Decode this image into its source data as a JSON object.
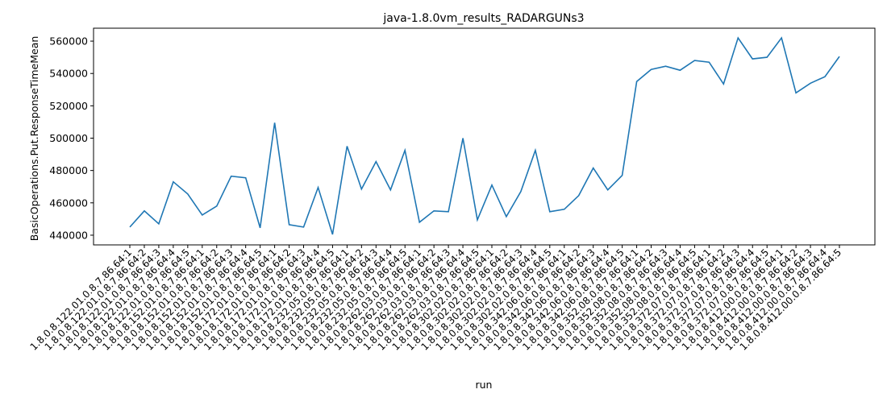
{
  "chart_data": {
    "type": "line",
    "title": "java-1.8.0vm_results_RADARGUNs3",
    "xlabel": "run",
    "ylabel": "BasicOperations.Put.ResponseTimeMean",
    "ylim": [
      434000,
      568000
    ],
    "yticks": [
      440000,
      460000,
      480000,
      500000,
      520000,
      540000,
      560000
    ],
    "grid": false,
    "line_color": "#1f77b4",
    "categories": [
      "1.8.0.8.122.01.0.8.7.86.64:1",
      "1.8.0.8.122.01.0.8.7.86.64:2",
      "1.8.0.8.122.01.0.8.7.86.64:3",
      "1.8.0.8.122.01.0.8.7.86.64:4",
      "1.8.0.8.122.01.0.8.7.86.64:5",
      "1.8.0.8.152.01.0.8.7.86.64:1",
      "1.8.0.8.152.01.0.8.7.86.64:2",
      "1.8.0.8.152.01.0.8.7.86.64:3",
      "1.8.0.8.152.01.0.8.7.86.64:4",
      "1.8.0.8.152.01.0.8.7.86.64:5",
      "1.8.0.8.172.01.0.8.7.86.64:1",
      "1.8.0.8.172.01.0.8.7.86.64:2",
      "1.8.0.8.172.01.0.8.7.86.64:3",
      "1.8.0.8.172.01.0.8.7.86.64:4",
      "1.8.0.8.172.01.0.8.7.86.64:5",
      "1.8.0.8.232.05.0.8.7.86.64:1",
      "1.8.0.8.232.05.0.8.7.86.64:2",
      "1.8.0.8.232.05.0.8.7.86.64:3",
      "1.8.0.8.232.05.0.8.7.86.64:4",
      "1.8.0.8.232.05.0.8.7.86.64:5",
      "1.8.0.8.262.03.0.8.7.86.64:1",
      "1.8.0.8.262.03.0.8.7.86.64:2",
      "1.8.0.8.262.03.0.8.7.86.64:3",
      "1.8.0.8.262.03.0.8.7.86.64:4",
      "1.8.0.8.262.03.0.8.7.86.64:5",
      "1.8.0.8.302.02.0.8.7.86.64:1",
      "1.8.0.8.302.02.0.8.7.86.64:2",
      "1.8.0.8.302.02.0.8.7.86.64:3",
      "1.8.0.8.302.02.0.8.7.86.64:4",
      "1.8.0.8.302.02.0.8.7.86.64:5",
      "1.8.0.8.342.06.0.8.7.86.64:1",
      "1.8.0.8.342.06.0.8.7.86.64:2",
      "1.8.0.8.342.06.0.8.7.86.64:3",
      "1.8.0.8.342.06.0.8.7.86.64:4",
      "1.8.0.8.342.06.0.8.7.86.64:5",
      "1.8.0.8.352.08.0.8.7.86.64:1",
      "1.8.0.8.352.08.0.8.7.86.64:2",
      "1.8.0.8.352.08.0.8.7.86.64:3",
      "1.8.0.8.352.08.0.8.7.86.64:4",
      "1.8.0.8.352.08.0.8.7.86.64:5",
      "1.8.0.8.372.07.0.8.7.86.64:1",
      "1.8.0.8.372.07.0.8.7.86.64:2",
      "1.8.0.8.372.07.0.8.7.86.64:3",
      "1.8.0.8.372.07.0.8.7.86.64:4",
      "1.8.0.8.372.07.0.8.7.86.64:5",
      "1.8.0.8.412.00.0.8.7.86.64:1",
      "1.8.0.8.412.00.0.8.7.86.64:2",
      "1.8.0.8.412.00.0.8.7.86.64:3",
      "1.8.0.8.412.00.0.8.7.86.64:4",
      "1.8.0.8.412.00.0.8.7.86.64:5"
    ],
    "values": [
      445000,
      455000,
      447000,
      473000,
      465500,
      452500,
      458000,
      476500,
      475500,
      444500,
      509500,
      446500,
      445000,
      469500,
      440500,
      495000,
      468500,
      485500,
      468000,
      492500,
      448000,
      455000,
      454500,
      500000,
      449500,
      471000,
      451500,
      467000,
      492500,
      454500,
      456000,
      464500,
      481500,
      468000,
      477000,
      535000,
      542500,
      544500,
      542000,
      548000,
      547000,
      533500,
      562000,
      549000,
      550000,
      562000,
      528000,
      534000,
      538000,
      550500
    ]
  }
}
